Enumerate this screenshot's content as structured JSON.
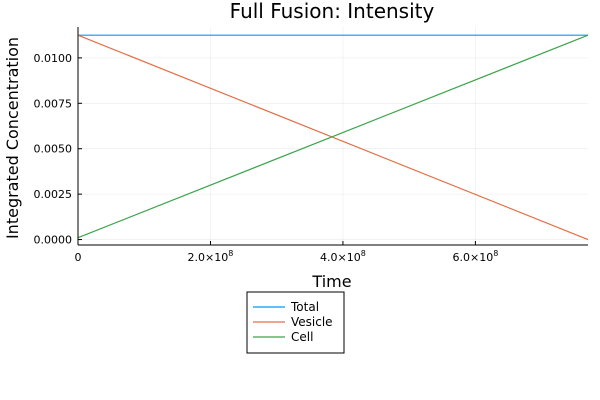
{
  "chart_data": {
    "type": "line",
    "title": "Full Fusion: Intensity",
    "xlabel": "Time",
    "ylabel": "Integrated Concentration",
    "xlim": [
      0,
      770000000
    ],
    "ylim": [
      -0.0003,
      0.0117
    ],
    "grid": true,
    "legend_position": "bottom-center",
    "x_ticks": [
      {
        "value": 0,
        "mantissa": "0",
        "exp": ""
      },
      {
        "value": 200000000,
        "mantissa": "2.0×10",
        "exp": "8"
      },
      {
        "value": 400000000,
        "mantissa": "4.0×10",
        "exp": "8"
      },
      {
        "value": 600000000,
        "mantissa": "6.0×10",
        "exp": "8"
      }
    ],
    "y_ticks": [
      {
        "value": 0,
        "label": "0.0000"
      },
      {
        "value": 0.0025,
        "label": "0.0025"
      },
      {
        "value": 0.005,
        "label": "0.0050"
      },
      {
        "value": 0.0075,
        "label": "0.0075"
      },
      {
        "value": 0.01,
        "label": "0.0100"
      }
    ],
    "series": [
      {
        "name": "Total",
        "color": "#009AFA",
        "x": [
          0,
          770000000
        ],
        "y": [
          0.01125,
          0.01125
        ]
      },
      {
        "name": "Vesicle",
        "color": "#E26F46",
        "x": [
          0,
          770000000
        ],
        "y": [
          0.01125,
          0.0
        ]
      },
      {
        "name": "Cell",
        "color": "#3DA44D",
        "x": [
          0,
          770000000
        ],
        "y": [
          0.0001,
          0.01125
        ]
      }
    ]
  }
}
